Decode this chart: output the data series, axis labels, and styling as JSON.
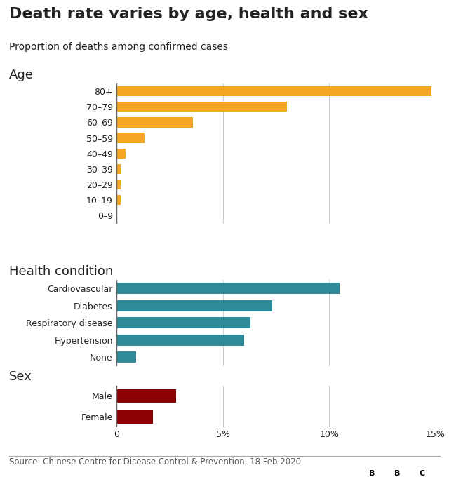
{
  "title": "Death rate varies by age, health and sex",
  "subtitle": "Proportion of deaths among confirmed cases",
  "source": "Source: Chinese Centre for Disease Control & Prevention, 18 Feb 2020",
  "xlim": [
    0,
    15
  ],
  "xticks": [
    0,
    5,
    10,
    15
  ],
  "xticklabels": [
    "0",
    "5%",
    "10%",
    "15%"
  ],
  "age_section_label": "Age",
  "age_categories": [
    "80+",
    "70–79",
    "60–69",
    "50–59",
    "40–49",
    "30–39",
    "20–29",
    "10–19",
    "0–9"
  ],
  "age_values": [
    14.8,
    8.0,
    3.6,
    1.3,
    0.4,
    0.2,
    0.2,
    0.2,
    0.0
  ],
  "age_color": "#F5A623",
  "health_section_label": "Health condition",
  "health_categories": [
    "Cardiovascular",
    "Diabetes",
    "Respiratory disease",
    "Hypertension",
    "None"
  ],
  "health_values": [
    10.5,
    7.3,
    6.3,
    6.0,
    0.9
  ],
  "health_color": "#2E8B9A",
  "sex_section_label": "Sex",
  "sex_categories": [
    "Male",
    "Female"
  ],
  "sex_values": [
    2.8,
    1.7
  ],
  "sex_color": "#8B0000",
  "background_color": "#FFFFFF",
  "grid_color": "#CCCCCC",
  "text_color": "#222222",
  "section_label_fontsize": 13,
  "title_fontsize": 16,
  "subtitle_fontsize": 10,
  "tick_fontsize": 9,
  "source_fontsize": 8.5
}
